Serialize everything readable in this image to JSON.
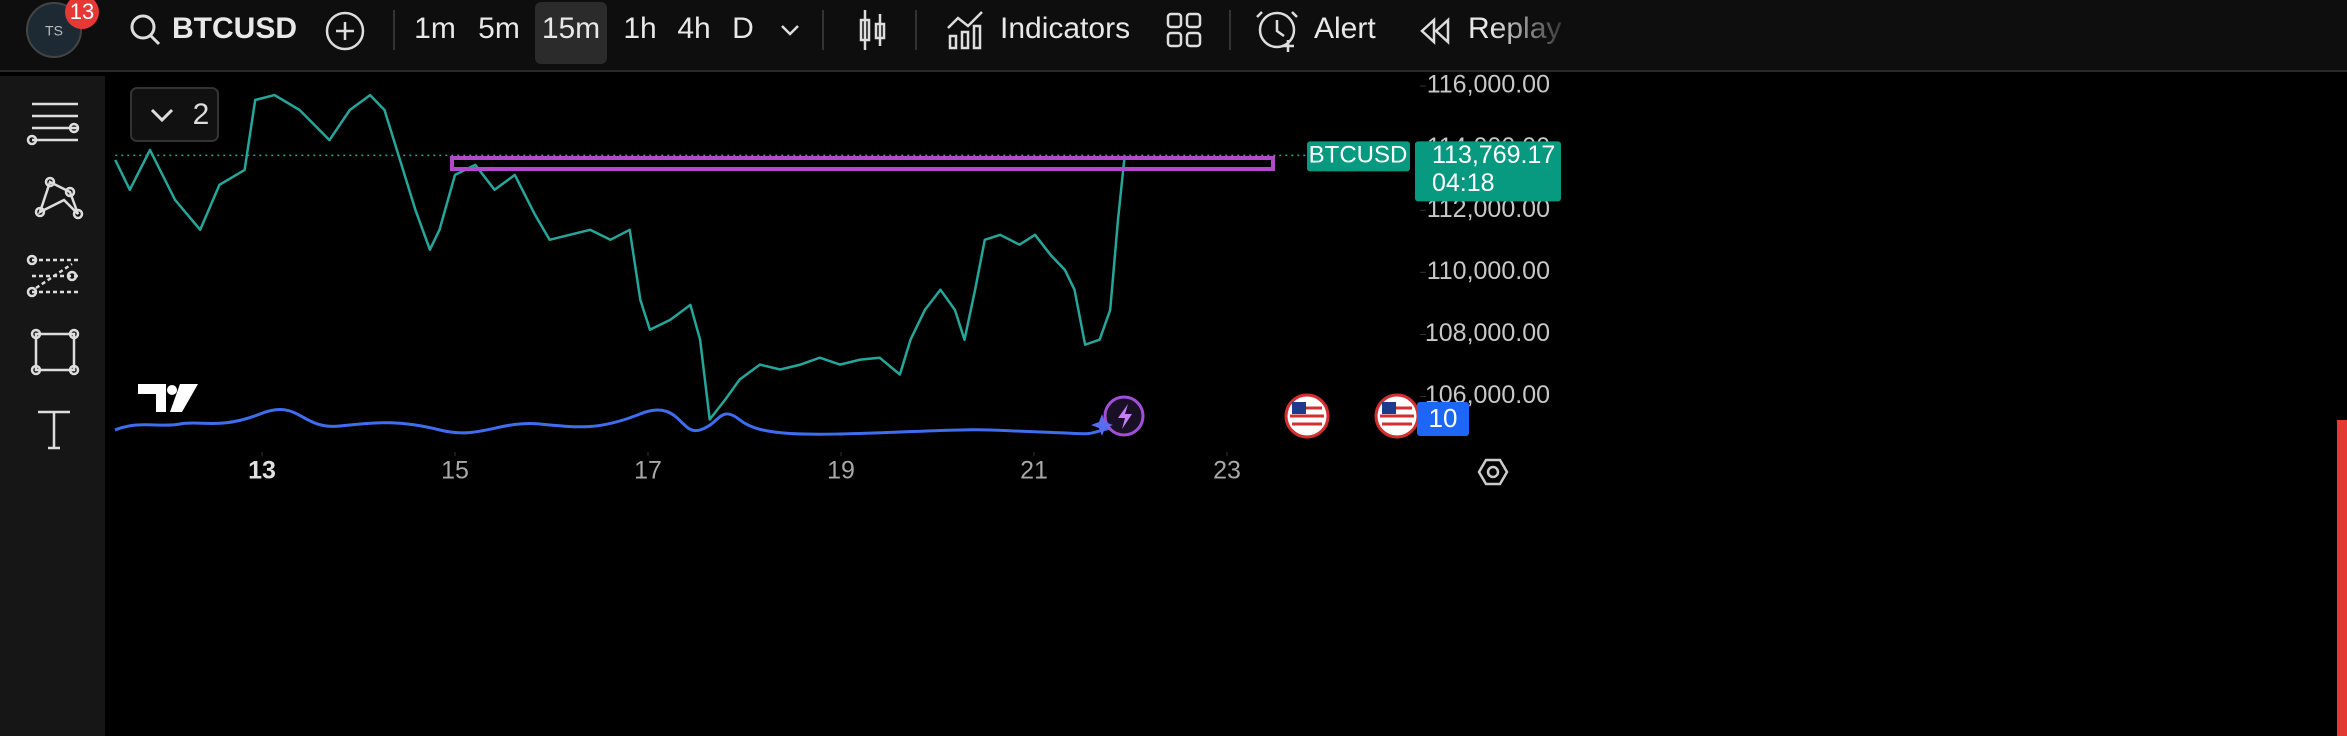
{
  "toolbar": {
    "badge": "13",
    "symbol": "BTCUSD",
    "intervals": [
      "1m",
      "5m",
      "15m",
      "1h",
      "4h",
      "D"
    ],
    "active_interval": "15m",
    "indicators": "Indicators",
    "alert": "Alert",
    "replay": "Replay"
  },
  "chart_data": {
    "type": "line",
    "x": [
      11.48,
      11.63,
      11.84,
      12.1,
      12.36,
      12.56,
      12.82,
      12.93,
      13.13,
      13.39,
      13.7,
      13.91,
      14.12,
      14.27,
      14.43,
      14.59,
      14.74,
      14.84,
      15.0,
      15.21,
      15.41,
      15.62,
      15.83,
      15.98,
      16.19,
      16.4,
      16.61,
      16.81,
      16.92,
      17.02,
      17.23,
      17.44,
      17.54,
      17.64,
      17.8,
      17.95,
      18.16,
      18.37,
      18.58,
      18.78,
      18.99,
      19.2,
      19.4,
      19.61,
      19.72,
      19.87,
      20.03,
      20.18,
      20.28,
      20.39,
      20.49,
      20.65,
      20.85,
      21.01,
      21.17,
      21.32,
      21.42,
      21.53,
      21.68,
      21.79,
      21.87,
      21.94
    ],
    "series": [
      {
        "name": "BTCUSD",
        "color": "#26a69a",
        "values": [
          113620,
          112660,
          113940,
          112330,
          111370,
          112820,
          113300,
          115550,
          115710,
          115230,
          114260,
          115230,
          115710,
          115230,
          113620,
          112010,
          110730,
          111370,
          113140,
          113460,
          112660,
          113140,
          111850,
          111050,
          111210,
          111370,
          111050,
          111370,
          109120,
          108150,
          108470,
          108950,
          107830,
          105260,
          105900,
          106550,
          107030,
          106870,
          107030,
          107250,
          107030,
          107190,
          107250,
          106710,
          107830,
          108790,
          109440,
          108790,
          107830,
          109440,
          111050,
          111210,
          110890,
          111210,
          110570,
          110080,
          109440,
          107670,
          107830,
          108790,
          111690,
          113769.17
        ]
      }
    ],
    "xlim": [
      11.48,
      25.0
    ],
    "xticks": [
      13,
      15,
      17,
      19,
      21,
      23
    ],
    "ylim": [
      104600,
      116260
    ],
    "yticks": [
      {
        "value": 116000,
        "label": "116,000.00"
      },
      {
        "value": 114000,
        "label": "114,000.00"
      },
      {
        "value": 112000,
        "label": "112,000.00"
      },
      {
        "value": 110000,
        "label": "110,000.00"
      },
      {
        "value": 108000,
        "label": "108,000.00"
      },
      {
        "value": 106000,
        "label": "106,000.00"
      }
    ],
    "last_price": {
      "value": 113769.17,
      "label": "113,769.17"
    },
    "countdown": "04:18"
  },
  "overlays": {
    "collapsed_count": "2",
    "event_count": "10"
  }
}
